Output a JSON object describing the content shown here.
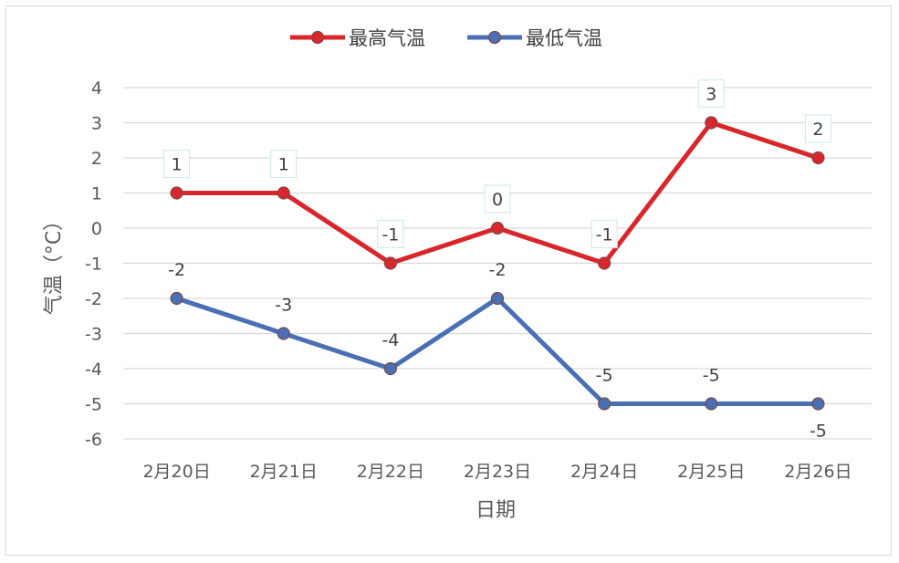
{
  "chart_data": {
    "type": "line",
    "categories": [
      "2月20日",
      "2月21日",
      "2月22日",
      "2月23日",
      "2月24日",
      "2月25日",
      "2月26日"
    ],
    "series": [
      {
        "name": "最高气温",
        "values": [
          1,
          1,
          -1,
          0,
          -1,
          3,
          2
        ],
        "color": "#d9262b"
      },
      {
        "name": "最低气温",
        "values": [
          -2,
          -3,
          -4,
          -2,
          -5,
          -5,
          -5
        ],
        "color": "#4a6fb5"
      }
    ],
    "yticks": [
      4,
      3,
      2,
      1,
      0,
      -1,
      -2,
      -3,
      -4,
      -5,
      -6
    ],
    "ylim": [
      -6,
      4
    ],
    "xlabel": "日期",
    "ylabel": "气温（°C）",
    "grid": true,
    "legend_position": "top"
  }
}
